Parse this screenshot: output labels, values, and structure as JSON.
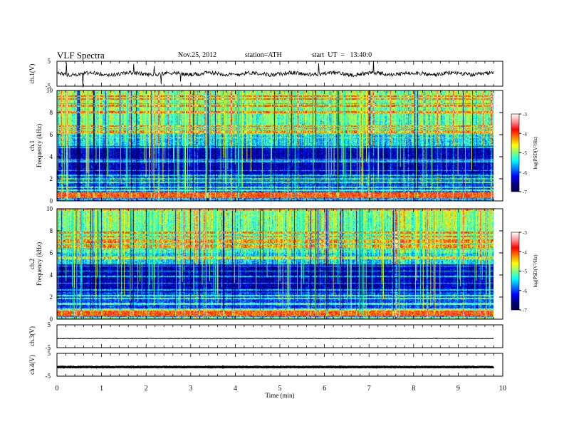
{
  "header": {
    "title": "VLF Spectra",
    "date": "Nov.25, 2012",
    "station": "station=ATH",
    "start_time": "start  UT  =   13:40:0"
  },
  "colors": {
    "colormap": [
      "#000050",
      "#00007f",
      "#0000ff",
      "#007fff",
      "#00ffff",
      "#7fff7f",
      "#ffff00",
      "#ff7f00",
      "#ff0000",
      "#ff9090",
      "#ffffff"
    ]
  },
  "chart_data": [
    {
      "type": "line",
      "panel": "ch1-waveform",
      "ylabel": "ch.1(V)",
      "ylim": [
        -5,
        5
      ],
      "y_ticks": [
        "5",
        "-5"
      ],
      "xlim": [
        0,
        10
      ],
      "baseline": 0,
      "description_values": {
        "approx_level": 0,
        "approx_amplitude": 1.5
      }
    },
    {
      "type": "heatmap",
      "panel": "ch1-spectrogram",
      "ylabel_line1": "ch.1",
      "ylabel_line2": "Frequency (kHz)",
      "ylim": [
        0,
        10
      ],
      "y_ticks": [
        "0",
        "2",
        "4",
        "6",
        "8",
        "10"
      ],
      "xlim": [
        0,
        10
      ],
      "data_end_min": 9.8,
      "colorbar": {
        "label": "log(PSD(V²/Hz)",
        "ticks": [
          "-3",
          "-4",
          "-5",
          "-6",
          "-7"
        ],
        "range": [
          -7,
          -3
        ]
      }
    },
    {
      "type": "heatmap",
      "panel": "ch2-spectrogram",
      "ylabel_line1": "ch.2",
      "ylabel_line2": "Frequency (kHz)",
      "ylim": [
        0,
        10
      ],
      "y_ticks": [
        "0",
        "2",
        "4",
        "6",
        "8",
        "10"
      ],
      "xlim": [
        0,
        10
      ],
      "data_end_min": 9.8,
      "colorbar": {
        "label": "log(PSD(V²/Hz)",
        "ticks": [
          "-3",
          "-4",
          "-5",
          "-6",
          "-7"
        ],
        "range": [
          -7,
          -3
        ]
      }
    },
    {
      "type": "line",
      "panel": "ch3-waveform",
      "ylabel": "ch.3(V)",
      "ylim": [
        -5,
        5
      ],
      "y_ticks": [
        "5",
        "-5"
      ],
      "xlim": [
        0,
        10
      ],
      "baseline": -1
    },
    {
      "type": "line",
      "panel": "ch4-waveform",
      "ylabel": "ch.4(V)",
      "ylim": [
        -5,
        5
      ],
      "y_ticks": [
        "5",
        "-5"
      ],
      "xlim": [
        0,
        10
      ],
      "baseline": -1
    }
  ],
  "x_axis": {
    "label": "Time  (min)",
    "ticks": [
      "0",
      "1",
      "2",
      "3",
      "4",
      "5",
      "6",
      "7",
      "8",
      "9",
      "10"
    ]
  }
}
